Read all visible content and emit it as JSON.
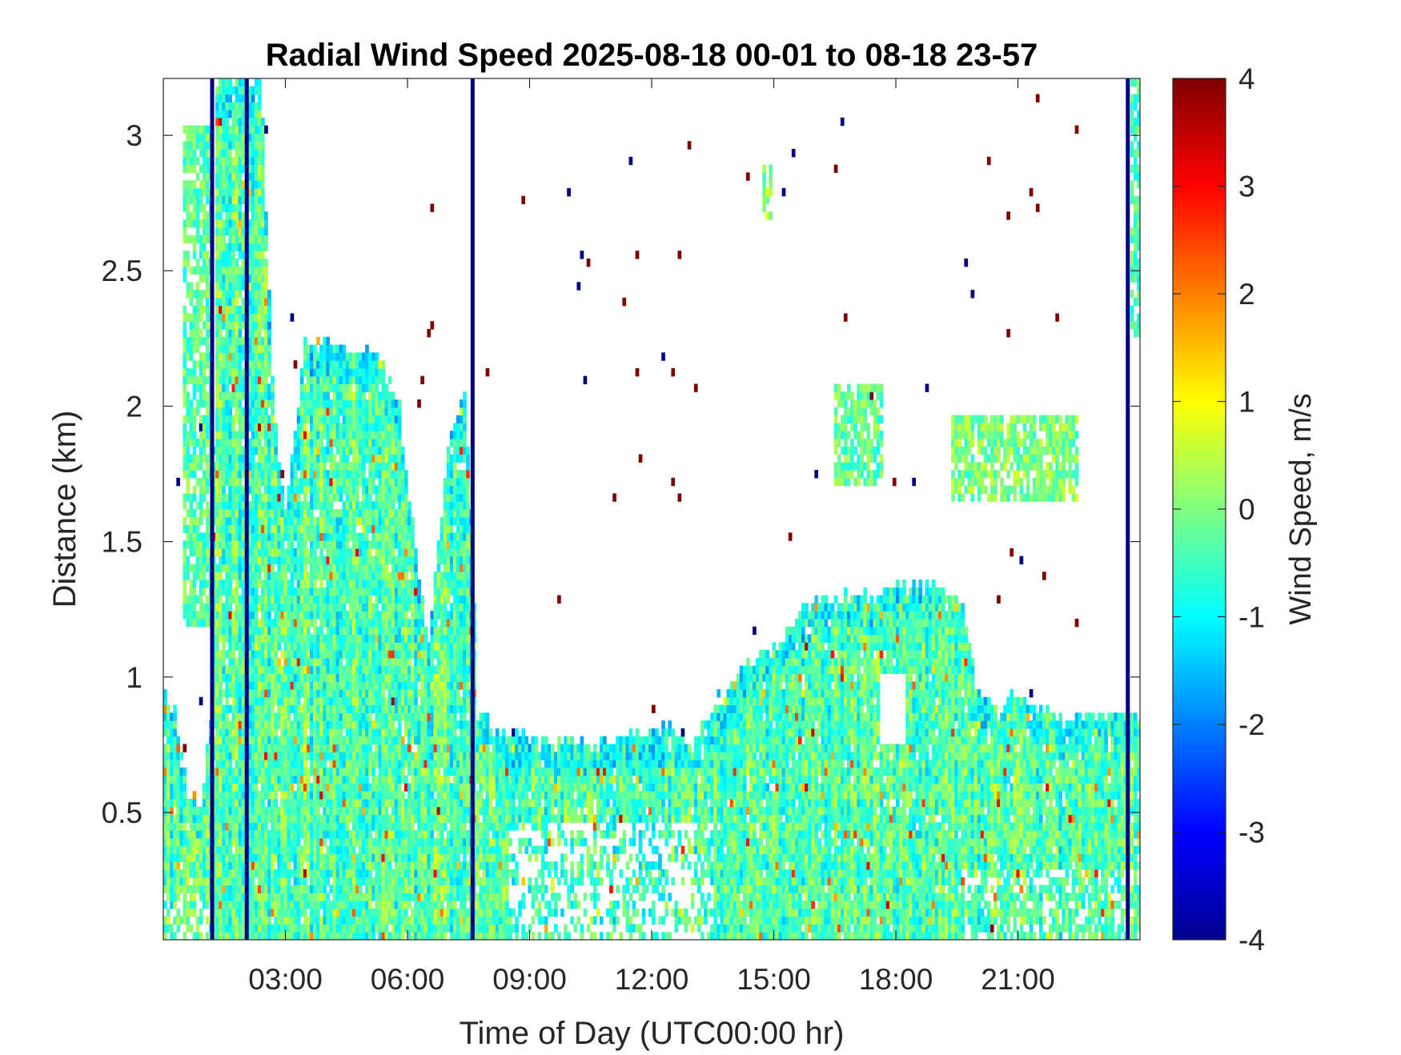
{
  "chart_data": {
    "type": "heatmap",
    "title": "Radial Wind Speed 2025-08-18 00-01 to 08-18 23-57",
    "xlabel": "Time of Day (UTC00:00 hr)",
    "ylabel": "Distance (km)",
    "colorbar_label": "Wind Speed, m/s",
    "xlim": [
      0,
      24
    ],
    "ylim": [
      0.03,
      3.21
    ],
    "clim": [
      -4,
      4
    ],
    "colormap": "jet",
    "grid": false,
    "x_ticks": [
      {
        "value": 3,
        "label": "03:00"
      },
      {
        "value": 6,
        "label": "06:00"
      },
      {
        "value": 9,
        "label": "09:00"
      },
      {
        "value": 12,
        "label": "12:00"
      },
      {
        "value": 15,
        "label": "15:00"
      },
      {
        "value": 18,
        "label": "18:00"
      },
      {
        "value": 21,
        "label": "21:00"
      }
    ],
    "y_ticks": [
      {
        "value": 0.5,
        "label": "0.5"
      },
      {
        "value": 1,
        "label": "1"
      },
      {
        "value": 1.5,
        "label": "1.5"
      },
      {
        "value": 2,
        "label": "2"
      },
      {
        "value": 2.5,
        "label": "2.5"
      },
      {
        "value": 3,
        "label": "3"
      }
    ],
    "colorbar_ticks": [
      {
        "value": 4,
        "label": "4"
      },
      {
        "value": 3,
        "label": "3"
      },
      {
        "value": 2,
        "label": "2"
      },
      {
        "value": 1,
        "label": "1"
      },
      {
        "value": 0,
        "label": "0"
      },
      {
        "value": -1,
        "label": "-1"
      },
      {
        "value": -2,
        "label": "-2"
      },
      {
        "value": -3,
        "label": "-3"
      },
      {
        "value": -4,
        "label": "-4"
      }
    ],
    "boundary_layer_top_km": [
      [
        0.0,
        0.95
      ],
      [
        0.3,
        0.85
      ],
      [
        0.6,
        0.6
      ],
      [
        0.9,
        0.5
      ],
      [
        1.2,
        0.9
      ],
      [
        1.3,
        3.21
      ],
      [
        2.4,
        3.21
      ],
      [
        2.7,
        2.0
      ],
      [
        3.0,
        1.6
      ],
      [
        3.5,
        2.25
      ],
      [
        4.5,
        2.2
      ],
      [
        5.2,
        2.2
      ],
      [
        5.8,
        2.0
      ],
      [
        6.2,
        1.45
      ],
      [
        6.5,
        1.1
      ],
      [
        7.0,
        1.85
      ],
      [
        7.4,
        2.05
      ],
      [
        7.6,
        1.5
      ],
      [
        7.7,
        0.87
      ],
      [
        8.5,
        0.8
      ],
      [
        9.5,
        0.77
      ],
      [
        10.5,
        0.76
      ],
      [
        11.5,
        0.8
      ],
      [
        12.5,
        0.82
      ],
      [
        13.0,
        0.75
      ],
      [
        13.5,
        0.9
      ],
      [
        14.2,
        1.05
      ],
      [
        15.0,
        1.1
      ],
      [
        15.5,
        1.2
      ],
      [
        16.0,
        1.3
      ],
      [
        17.0,
        1.3
      ],
      [
        18.0,
        1.33
      ],
      [
        19.0,
        1.34
      ],
      [
        19.6,
        1.3
      ],
      [
        20.0,
        0.95
      ],
      [
        20.5,
        0.85
      ],
      [
        21.0,
        0.95
      ],
      [
        22.0,
        0.85
      ],
      [
        23.0,
        0.85
      ],
      [
        23.5,
        0.9
      ],
      [
        24.0,
        0.85
      ]
    ],
    "upper_cloud_patches": [
      {
        "x_start": 0.5,
        "x_end": 1.2,
        "y_bottom": 1.2,
        "y_top": 3.05,
        "mean_value": -0.3
      },
      {
        "x_start": 1.6,
        "x_end": 2.3,
        "y_bottom": 1.3,
        "y_top": 2.8,
        "mean_value": -0.2
      },
      {
        "x_start": 14.7,
        "x_end": 14.95,
        "y_bottom": 2.7,
        "y_top": 2.88,
        "mean_value": 0.2
      },
      {
        "x_start": 16.5,
        "x_end": 17.7,
        "y_bottom": 1.72,
        "y_top": 2.08,
        "mean_value": -0.2
      },
      {
        "x_start": 19.4,
        "x_end": 22.5,
        "y_bottom": 1.65,
        "y_top": 1.97,
        "mean_value": 0.0
      },
      {
        "x_start": 23.8,
        "x_end": 24.0,
        "y_bottom": 2.25,
        "y_top": 3.21,
        "mean_value": -0.4
      }
    ],
    "strong_negative_columns_hr": [
      1.2,
      2.05,
      7.6,
      23.7
    ],
    "clear_pocket": {
      "x_start": 17.6,
      "x_end": 18.2,
      "y_bottom": 0.75,
      "y_top": 1.0
    }
  }
}
